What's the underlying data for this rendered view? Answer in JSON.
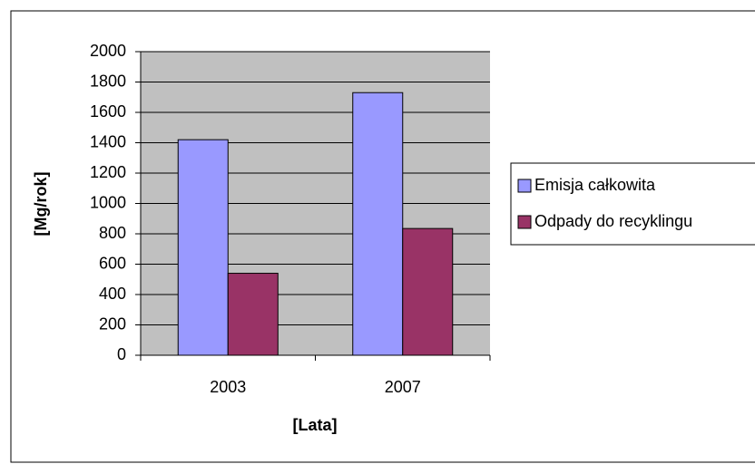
{
  "chart_data": {
    "type": "bar",
    "categories": [
      "2003",
      "2007"
    ],
    "series": [
      {
        "name": "Emisja całkowita",
        "color": "#9999ff",
        "values": [
          1420,
          1730
        ]
      },
      {
        "name": "Odpady do recyklingu",
        "color": "#993366",
        "values": [
          540,
          835
        ]
      }
    ],
    "xlabel": "[Lata]",
    "ylabel": "[Mg/rok]",
    "ylim": [
      0,
      2000
    ],
    "yticks": [
      0,
      200,
      400,
      600,
      800,
      1000,
      1200,
      1400,
      1600,
      1800,
      2000
    ],
    "grid": true,
    "legend": "right"
  }
}
